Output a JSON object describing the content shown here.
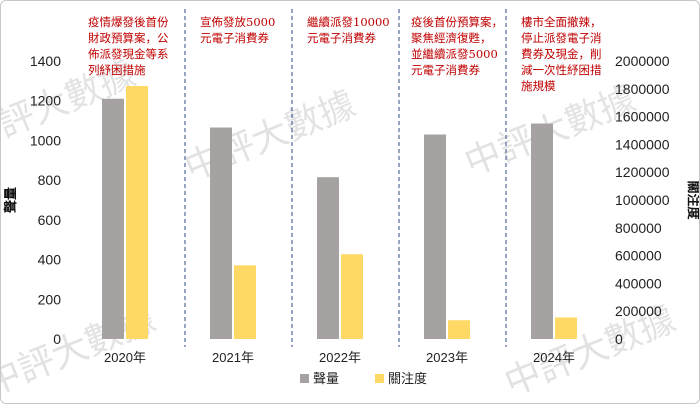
{
  "chart_data": {
    "type": "bar",
    "categories": [
      "2020年",
      "2021年",
      "2022年",
      "2023年",
      "2024年"
    ],
    "series": [
      {
        "name": "聲量",
        "axis": "left",
        "color": "#a6a2a2",
        "values": [
          1210,
          1065,
          815,
          1030,
          1085
        ]
      },
      {
        "name": "關注度",
        "axis": "right",
        "color": "#ffd966",
        "values": [
          1820000,
          530000,
          610000,
          135000,
          155000
        ]
      }
    ],
    "ylabel": "聲量",
    "y2label": "關注度",
    "ylim": [
      0,
      1400
    ],
    "y2lim": [
      0,
      2000000
    ],
    "yticks": [
      "0",
      "200",
      "400",
      "600",
      "800",
      "1000",
      "1200",
      "1400"
    ],
    "y2ticks": [
      "0",
      "200000",
      "400000",
      "600000",
      "800000",
      "1000000",
      "1200000",
      "1400000",
      "1600000",
      "1800000",
      "2000000"
    ],
    "annotations": [
      {
        "lines": [
          "疫情爆發後首份",
          "財政預算案，公",
          "佈派發現金等系",
          "列紓困措施"
        ]
      },
      {
        "lines": [
          "宣佈發放5000",
          "元電子消費券"
        ]
      },
      {
        "lines": [
          "繼續派發10000",
          "元電子消費券"
        ]
      },
      {
        "lines": [
          "疫後首份預算案，",
          "聚焦經濟復甦，",
          "並繼續派發5000",
          "元電子消費券"
        ]
      },
      {
        "lines": [
          "樓市全面撤辣，",
          "停止派發電子消",
          "費券及現金，削",
          "減一次性紓困措",
          "施規模"
        ]
      }
    ],
    "legend_position": "bottom",
    "grid": false
  },
  "watermark": "中評大數據"
}
